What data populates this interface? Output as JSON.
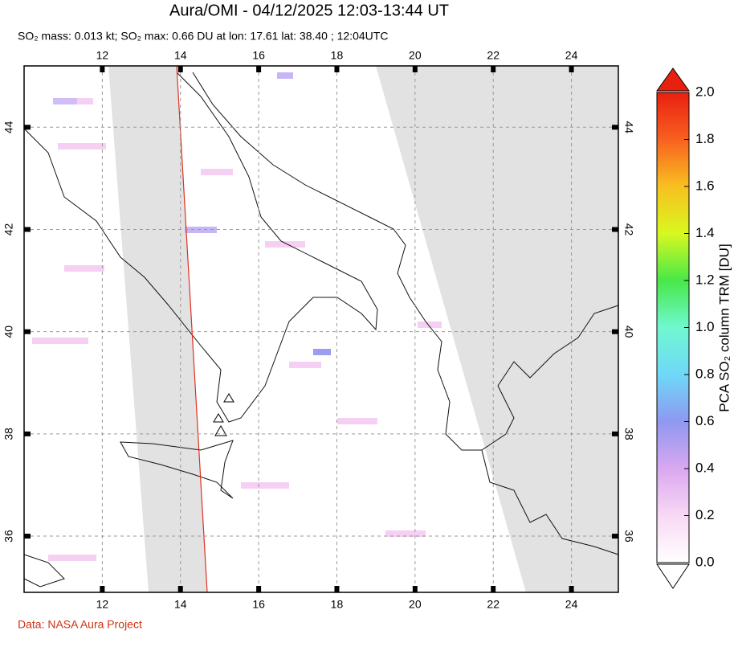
{
  "title": "Aura/OMI - 04/12/2025 12:03-13:44 UT",
  "subtitle": "SO₂ mass: 0.013 kt; SO₂ max: 0.66 DU at lon: 17.61 lat: 38.40 ; 12:04UTC",
  "map": {
    "xlim": [
      10,
      25.2
    ],
    "ylim": [
      34.9,
      45.2
    ],
    "xticks": [
      12,
      14,
      16,
      18,
      20,
      22,
      24
    ],
    "yticks": [
      36,
      38,
      40,
      42,
      44
    ],
    "grid": true
  },
  "colorbar": {
    "label": "PCA SO₂ column TRM [DU]",
    "lim": [
      0,
      2
    ],
    "ticks": [
      {
        "value": 0,
        "label": "0.0"
      },
      0.2,
      0.4,
      0.6,
      0.8,
      {
        "value": 1,
        "label": "1.0"
      },
      1.2,
      1.4,
      1.6,
      1.8,
      {
        "value": 2,
        "label": "2.0"
      }
    ],
    "colors": [
      "#ffffff",
      "#f8d8f4",
      "#d9a8f0",
      "#8f98f0",
      "#6fd8f8",
      "#70f8d0",
      "#48e848",
      "#d8f820",
      "#f8c020",
      "#f86020",
      "#e82010"
    ]
  },
  "credit": "Data: NASA Aura Project"
}
